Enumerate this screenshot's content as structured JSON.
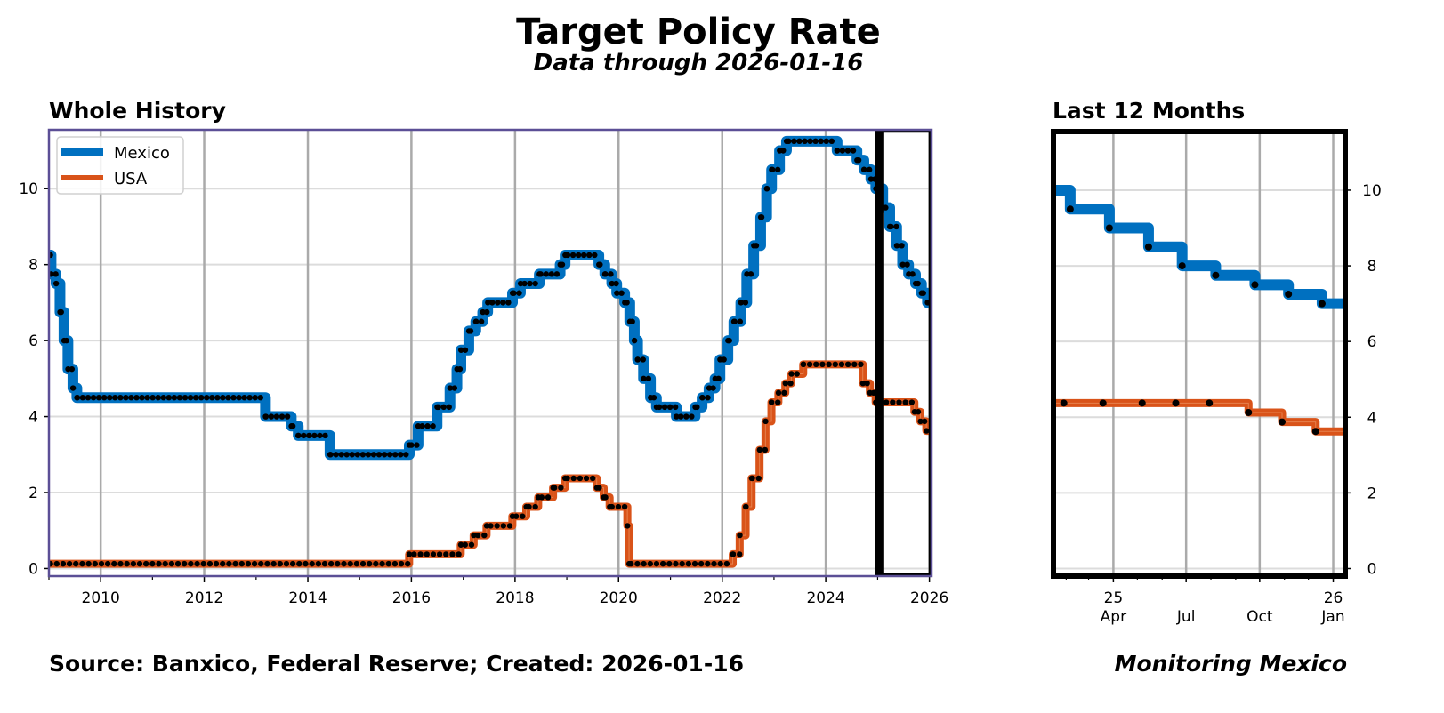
{
  "title": "Target Policy Rate",
  "subtitle": "Data through 2026-01-16",
  "footer_source": "Source: Banxico, Federal Reserve; Created: 2026-01-16",
  "footer_brand": "Monitoring Mexico",
  "colors": {
    "Mexico": "#0070c0",
    "USA": "#d95319",
    "frame_main": "#5b4f96",
    "highlight": "#000000"
  },
  "chart_data": [
    {
      "type": "line",
      "step": "post",
      "title": "Whole History",
      "xlim": [
        "2009-01-01",
        "2026-01-16"
      ],
      "ylim": [
        -0.2,
        11.55
      ],
      "x_ticks": [
        "2010",
        "2012",
        "2014",
        "2016",
        "2018",
        "2020",
        "2022",
        "2024",
        "2026"
      ],
      "y_ticks": [
        0,
        2,
        4,
        6,
        8,
        10
      ],
      "grid": true,
      "legend": "top-left",
      "highlight_window": [
        "2025-01-16",
        "2026-01-16"
      ],
      "series": [
        {
          "name": "Mexico",
          "points": [
            [
              "2009-01-01",
              8.25
            ],
            [
              "2009-01-16",
              7.75
            ],
            [
              "2009-02-20",
              7.5
            ],
            [
              "2009-03-20",
              6.75
            ],
            [
              "2009-04-17",
              6.0
            ],
            [
              "2009-05-15",
              5.25
            ],
            [
              "2009-06-19",
              4.75
            ],
            [
              "2009-07-17",
              4.5
            ],
            [
              "2013-03-08",
              4.0
            ],
            [
              "2013-09-06",
              3.75
            ],
            [
              "2013-10-25",
              3.5
            ],
            [
              "2014-06-06",
              3.0
            ],
            [
              "2015-12-17",
              3.25
            ],
            [
              "2016-02-17",
              3.75
            ],
            [
              "2016-06-30",
              4.25
            ],
            [
              "2016-09-29",
              4.75
            ],
            [
              "2016-11-17",
              5.25
            ],
            [
              "2016-12-15",
              5.75
            ],
            [
              "2017-02-09",
              6.25
            ],
            [
              "2017-03-30",
              6.5
            ],
            [
              "2017-05-18",
              6.75
            ],
            [
              "2017-06-22",
              7.0
            ],
            [
              "2017-12-14",
              7.25
            ],
            [
              "2018-02-08",
              7.5
            ],
            [
              "2018-06-21",
              7.75
            ],
            [
              "2018-11-15",
              8.0
            ],
            [
              "2018-12-20",
              8.25
            ],
            [
              "2019-08-15",
              8.0
            ],
            [
              "2019-09-26",
              7.75
            ],
            [
              "2019-11-14",
              7.5
            ],
            [
              "2019-12-19",
              7.25
            ],
            [
              "2020-02-13",
              7.0
            ],
            [
              "2020-03-20",
              6.5
            ],
            [
              "2020-04-21",
              6.0
            ],
            [
              "2020-05-14",
              5.5
            ],
            [
              "2020-06-25",
              5.0
            ],
            [
              "2020-08-13",
              4.5
            ],
            [
              "2020-09-24",
              4.25
            ],
            [
              "2021-02-11",
              4.0
            ],
            [
              "2021-06-24",
              4.25
            ],
            [
              "2021-08-12",
              4.5
            ],
            [
              "2021-09-30",
              4.75
            ],
            [
              "2021-11-11",
              5.0
            ],
            [
              "2021-12-16",
              5.5
            ],
            [
              "2022-02-10",
              6.0
            ],
            [
              "2022-03-24",
              6.5
            ],
            [
              "2022-05-12",
              7.0
            ],
            [
              "2022-06-23",
              7.75
            ],
            [
              "2022-08-11",
              8.5
            ],
            [
              "2022-09-29",
              9.25
            ],
            [
              "2022-11-10",
              10.0
            ],
            [
              "2022-12-15",
              10.5
            ],
            [
              "2023-02-09",
              11.0
            ],
            [
              "2023-03-30",
              11.25
            ],
            [
              "2024-03-21",
              11.0
            ],
            [
              "2024-08-08",
              10.75
            ],
            [
              "2024-09-26",
              10.5
            ],
            [
              "2024-11-14",
              10.25
            ],
            [
              "2024-12-19",
              10.0
            ],
            [
              "2025-02-06",
              9.5
            ],
            [
              "2025-03-27",
              9.0
            ],
            [
              "2025-05-15",
              8.5
            ],
            [
              "2025-06-26",
              8.0
            ],
            [
              "2025-08-07",
              7.75
            ],
            [
              "2025-09-25",
              7.5
            ],
            [
              "2025-11-06",
              7.25
            ],
            [
              "2025-12-18",
              7.0
            ],
            [
              "2026-01-16",
              7.0
            ]
          ]
        },
        {
          "name": "USA",
          "points": [
            [
              "2009-01-01",
              0.125
            ],
            [
              "2015-12-16",
              0.375
            ],
            [
              "2016-12-14",
              0.625
            ],
            [
              "2017-03-15",
              0.875
            ],
            [
              "2017-06-14",
              1.125
            ],
            [
              "2017-12-13",
              1.375
            ],
            [
              "2018-03-21",
              1.625
            ],
            [
              "2018-06-13",
              1.875
            ],
            [
              "2018-09-26",
              2.125
            ],
            [
              "2018-12-19",
              2.375
            ],
            [
              "2019-07-31",
              2.125
            ],
            [
              "2019-09-18",
              1.875
            ],
            [
              "2019-10-30",
              1.625
            ],
            [
              "2020-03-03",
              1.125
            ],
            [
              "2020-03-15",
              0.125
            ],
            [
              "2022-03-16",
              0.375
            ],
            [
              "2022-05-04",
              0.875
            ],
            [
              "2022-06-15",
              1.625
            ],
            [
              "2022-07-27",
              2.375
            ],
            [
              "2022-09-21",
              3.125
            ],
            [
              "2022-11-02",
              3.875
            ],
            [
              "2022-12-14",
              4.375
            ],
            [
              "2023-02-01",
              4.625
            ],
            [
              "2023-03-22",
              4.875
            ],
            [
              "2023-05-03",
              5.125
            ],
            [
              "2023-07-26",
              5.375
            ],
            [
              "2024-09-18",
              4.875
            ],
            [
              "2024-11-07",
              4.625
            ],
            [
              "2024-12-18",
              4.375
            ],
            [
              "2025-09-17",
              4.125
            ],
            [
              "2025-10-29",
              3.875
            ],
            [
              "2025-12-10",
              3.625
            ],
            [
              "2026-01-16",
              3.625
            ]
          ]
        }
      ]
    },
    {
      "type": "line",
      "step": "post",
      "title": "Last 12 Months",
      "xlim": [
        "2025-01-16",
        "2026-01-16"
      ],
      "ylim": [
        -0.2,
        11.55
      ],
      "y_ticks": [
        0,
        2,
        4,
        6,
        8,
        10
      ],
      "y_axis_side": "right",
      "x_ticks": [
        {
          "date": "2025-04-01",
          "year": "25",
          "month": "Apr"
        },
        {
          "date": "2025-07-01",
          "year": "",
          "month": "Jul"
        },
        {
          "date": "2025-10-01",
          "year": "",
          "month": "Oct"
        },
        {
          "date": "2026-01-01",
          "year": "26",
          "month": "Jan"
        }
      ],
      "grid": true,
      "marker_dates": {
        "Mexico": [
          "2025-02-06",
          "2025-03-27",
          "2025-05-15",
          "2025-06-26",
          "2025-08-07",
          "2025-09-25",
          "2025-11-06",
          "2025-12-18"
        ],
        "USA": [
          "2025-01-29",
          "2025-03-19",
          "2025-05-07",
          "2025-06-18",
          "2025-07-30",
          "2025-09-17",
          "2025-10-29",
          "2025-12-10"
        ]
      }
    }
  ]
}
